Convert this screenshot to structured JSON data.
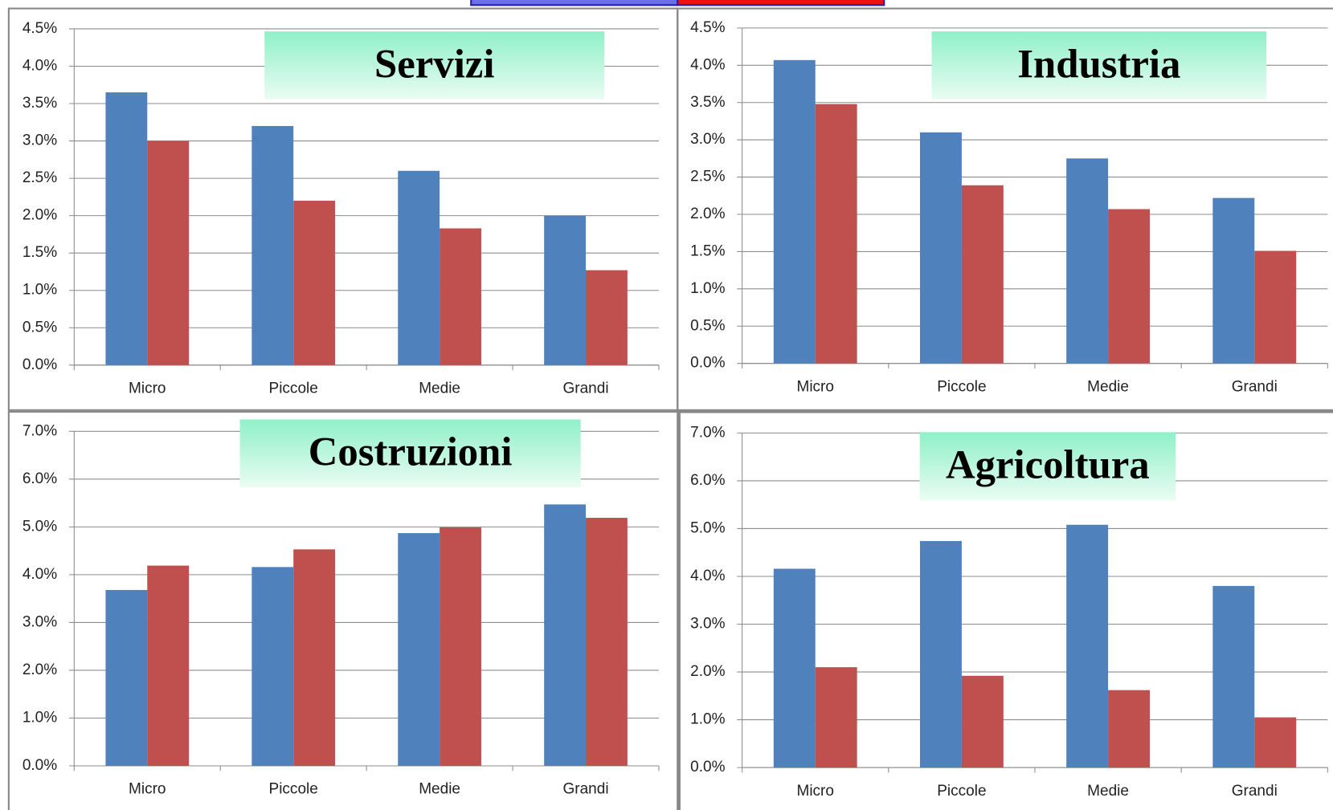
{
  "chart_data": [
    {
      "type": "bar",
      "title": "Servizi",
      "categories": [
        "Micro",
        "Piccole",
        "Medie",
        "Grandi"
      ],
      "series": [
        {
          "color": "#4f81bd",
          "values": [
            3.65,
            3.2,
            2.6,
            2.0
          ]
        },
        {
          "color": "#c0504d",
          "values": [
            3.0,
            2.2,
            1.83,
            1.27
          ]
        }
      ],
      "ylim": [
        0,
        4.5
      ],
      "yticks": [
        {
          "value": 0,
          "label": "0.0%"
        },
        {
          "value": 0.5,
          "label": "0.5%"
        },
        {
          "value": 1,
          "label": "1.0%"
        },
        {
          "value": 1.5,
          "label": "1.5%"
        },
        {
          "value": 2,
          "label": "2.0%"
        },
        {
          "value": 2.5,
          "label": "2.5%"
        },
        {
          "value": 3,
          "label": "3.0%"
        },
        {
          "value": 3.5,
          "label": "3.5%"
        },
        {
          "value": 4,
          "label": "4.0%"
        },
        {
          "value": 4.5,
          "label": "4.5%"
        }
      ],
      "grid": true
    },
    {
      "type": "bar",
      "title": "Industria",
      "categories": [
        "Micro",
        "Piccole",
        "Medie",
        "Grandi"
      ],
      "series": [
        {
          "color": "#4f81bd",
          "values": [
            4.07,
            3.1,
            2.75,
            2.22
          ]
        },
        {
          "color": "#c0504d",
          "values": [
            3.48,
            2.39,
            2.07,
            1.51
          ]
        }
      ],
      "ylim": [
        0,
        4.5
      ],
      "yticks": [
        {
          "value": 0,
          "label": "0.0%"
        },
        {
          "value": 0.5,
          "label": "0.5%"
        },
        {
          "value": 1,
          "label": "1.0%"
        },
        {
          "value": 1.5,
          "label": "1.5%"
        },
        {
          "value": 2,
          "label": "2.0%"
        },
        {
          "value": 2.5,
          "label": "2.5%"
        },
        {
          "value": 3,
          "label": "3.0%"
        },
        {
          "value": 3.5,
          "label": "3.5%"
        },
        {
          "value": 4,
          "label": "4.0%"
        },
        {
          "value": 4.5,
          "label": "4.5%"
        }
      ],
      "grid": true
    },
    {
      "type": "bar",
      "title": "Costruzioni",
      "categories": [
        "Micro",
        "Piccole",
        "Medie",
        "Grandi"
      ],
      "series": [
        {
          "color": "#4f81bd",
          "values": [
            3.68,
            4.16,
            4.87,
            5.47
          ]
        },
        {
          "color": "#c0504d",
          "values": [
            4.19,
            4.53,
            4.99,
            5.19
          ]
        }
      ],
      "ylim": [
        0,
        7
      ],
      "yticks": [
        {
          "value": 0,
          "label": "0.0%"
        },
        {
          "value": 1,
          "label": "1.0%"
        },
        {
          "value": 2,
          "label": "2.0%"
        },
        {
          "value": 3,
          "label": "3.0%"
        },
        {
          "value": 4,
          "label": "4.0%"
        },
        {
          "value": 5,
          "label": "5.0%"
        },
        {
          "value": 6,
          "label": "6.0%"
        },
        {
          "value": 7,
          "label": "7.0%"
        }
      ],
      "grid": true
    },
    {
      "type": "bar",
      "title": "Agricoltura",
      "categories": [
        "Micro",
        "Piccole",
        "Medie",
        "Grandi"
      ],
      "series": [
        {
          "color": "#4f81bd",
          "values": [
            4.16,
            4.74,
            5.08,
            3.8
          ]
        },
        {
          "color": "#c0504d",
          "values": [
            2.1,
            1.92,
            1.62,
            1.05
          ]
        }
      ],
      "ylim": [
        0,
        7
      ],
      "yticks": [
        {
          "value": 0,
          "label": "0.0%"
        },
        {
          "value": 1,
          "label": "1.0%"
        },
        {
          "value": 2,
          "label": "2.0%"
        },
        {
          "value": 3,
          "label": "3.0%"
        },
        {
          "value": 4,
          "label": "4.0%"
        },
        {
          "value": 5,
          "label": "5.0%"
        },
        {
          "value": 6,
          "label": "6.0%"
        },
        {
          "value": 7,
          "label": "7.0%"
        }
      ],
      "grid": true
    }
  ]
}
